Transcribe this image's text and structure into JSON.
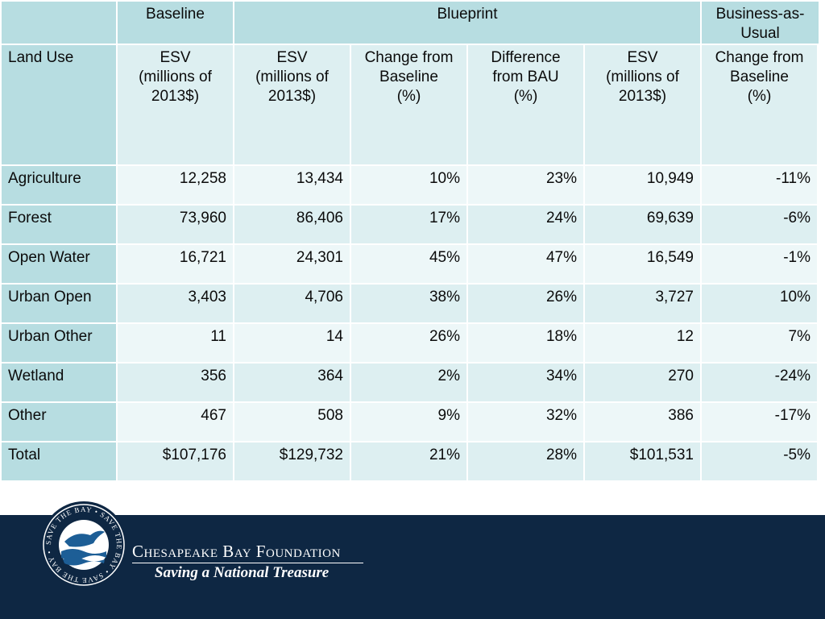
{
  "table": {
    "group_headers": {
      "baseline": "Baseline",
      "blueprint": "Blueprint",
      "bau": "Business-as-Usual"
    },
    "column_headers": {
      "land_use": "Land Use",
      "baseline_esv": [
        "ESV",
        "(millions of",
        "2013$)"
      ],
      "blueprint_esv": [
        "ESV",
        "(millions of",
        "2013$)"
      ],
      "blueprint_change": [
        "Change from",
        "Baseline",
        "(%)"
      ],
      "blueprint_diff": [
        "Difference",
        "from BAU",
        "(%)"
      ],
      "bau_esv": [
        "ESV",
        "(millions of",
        "2013$)"
      ],
      "bau_change": [
        "Change from",
        "Baseline",
        "(%)"
      ]
    },
    "rows": [
      {
        "label": "Agriculture",
        "baseline_esv": "12,258",
        "blueprint_esv": "13,434",
        "blueprint_change": "10%",
        "blueprint_diff": "23%",
        "bau_esv": "10,949",
        "bau_change": "-11%"
      },
      {
        "label": "Forest",
        "baseline_esv": "73,960",
        "blueprint_esv": "86,406",
        "blueprint_change": "17%",
        "blueprint_diff": "24%",
        "bau_esv": "69,639",
        "bau_change": "-6%"
      },
      {
        "label": "Open Water",
        "baseline_esv": "16,721",
        "blueprint_esv": "24,301",
        "blueprint_change": "45%",
        "blueprint_diff": "47%",
        "bau_esv": "16,549",
        "bau_change": "-1%"
      },
      {
        "label": "Urban Open",
        "baseline_esv": "3,403",
        "blueprint_esv": "4,706",
        "blueprint_change": "38%",
        "blueprint_diff": "26%",
        "bau_esv": "3,727",
        "bau_change": "10%"
      },
      {
        "label": "Urban Other",
        "baseline_esv": "11",
        "blueprint_esv": "14",
        "blueprint_change": "26%",
        "blueprint_diff": "18%",
        "bau_esv": "12",
        "bau_change": "7%"
      },
      {
        "label": "Wetland",
        "baseline_esv": "356",
        "blueprint_esv": "364",
        "blueprint_change": "2%",
        "blueprint_diff": "34%",
        "bau_esv": "270",
        "bau_change": "-24%"
      },
      {
        "label": "Other",
        "baseline_esv": "467",
        "blueprint_esv": "508",
        "blueprint_change": "9%",
        "blueprint_diff": "32%",
        "bau_esv": "386",
        "bau_change": "-17%"
      },
      {
        "label": "Total",
        "baseline_esv": "$107,176",
        "blueprint_esv": "$129,732",
        "blueprint_change": "21%",
        "blueprint_diff": "28%",
        "bau_esv": "$101,531",
        "bau_change": "-5%"
      }
    ]
  },
  "footer": {
    "brand_name": "Chesapeake Bay Foundation",
    "tagline": "Saving a National Treasure",
    "seal_text": "SAVE THE BAY • SAVE THE BAY • SAVE THE BAY •"
  },
  "colors": {
    "header_teal": "#b7dde1",
    "row_shade_a": "#ddeff1",
    "row_shade_b": "#edf7f8",
    "footer_navy": "#0e2743"
  }
}
